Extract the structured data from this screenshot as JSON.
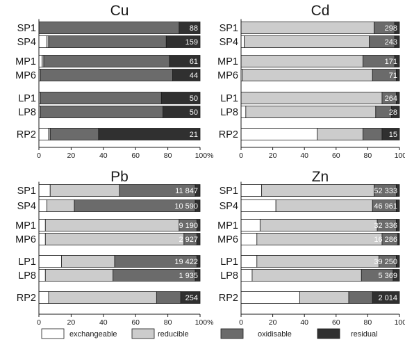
{
  "colors": {
    "exchangeable": "#ffffff",
    "reducible": "#cccccc",
    "oxidisable": "#6b6b6b",
    "residual": "#303030"
  },
  "legend": [
    "exchangeable",
    "reducible",
    "oxidisable",
    "residual"
  ],
  "chart_data": [
    {
      "type": "bar",
      "orientation": "horizontal",
      "stacked": true,
      "title": "Cu",
      "categories": [
        "SP1",
        "SP4",
        "MP1",
        "MP6",
        "LP1",
        "LP8",
        "RP2"
      ],
      "series": [
        {
          "name": "exchangeable",
          "values": [
            0,
            5,
            2,
            0,
            0,
            0,
            6
          ]
        },
        {
          "name": "reducible",
          "values": [
            0,
            1,
            1,
            1,
            1,
            1,
            1
          ]
        },
        {
          "name": "oxidisable",
          "values": [
            87,
            73,
            78,
            82,
            75,
            76,
            30
          ]
        },
        {
          "name": "residual",
          "values": [
            13,
            21,
            19,
            17,
            24,
            23,
            63
          ]
        }
      ],
      "labels": [
        "88",
        "159",
        "61",
        "44",
        "50",
        "50",
        "21"
      ],
      "xlim": [
        0,
        100
      ],
      "xticks": [
        "0",
        "20",
        "40",
        "60",
        "80",
        "100%"
      ]
    },
    {
      "type": "bar",
      "orientation": "horizontal",
      "stacked": true,
      "title": "Cd",
      "categories": [
        "SP1",
        "SP4",
        "MP1",
        "MP6",
        "LP1",
        "LP8",
        "RP2"
      ],
      "series": [
        {
          "name": "exchangeable",
          "values": [
            0,
            2,
            0,
            1,
            0,
            3,
            48
          ]
        },
        {
          "name": "reducible",
          "values": [
            84,
            79,
            77,
            82,
            89,
            82,
            29
          ]
        },
        {
          "name": "oxidisable",
          "values": [
            13,
            16,
            20,
            15,
            9,
            10,
            12
          ]
        },
        {
          "name": "residual",
          "values": [
            3,
            3,
            3,
            2,
            2,
            5,
            11
          ]
        }
      ],
      "labels": [
        "298",
        "243",
        "171",
        "71",
        "264",
        "28",
        "15"
      ],
      "xlim": [
        0,
        100
      ],
      "xticks": [
        "0",
        "20",
        "40",
        "60",
        "80",
        "100%"
      ]
    },
    {
      "type": "bar",
      "orientation": "horizontal",
      "stacked": true,
      "title": "Pb",
      "categories": [
        "SP1",
        "SP4",
        "MP1",
        "MP6",
        "LP1",
        "LP8",
        "RP2"
      ],
      "series": [
        {
          "name": "exchangeable",
          "values": [
            7,
            5,
            4,
            4,
            14,
            4,
            6
          ]
        },
        {
          "name": "reducible",
          "values": [
            43,
            17,
            83,
            86,
            33,
            42,
            67
          ]
        },
        {
          "name": "oxidisable",
          "values": [
            47,
            75,
            11,
            8,
            51,
            51,
            15
          ]
        },
        {
          "name": "residual",
          "values": [
            3,
            3,
            2,
            2,
            2,
            3,
            12
          ]
        }
      ],
      "labels": [
        "11 847",
        "10 590",
        "9 190",
        "2 927",
        "19 422",
        "1 935",
        "254"
      ],
      "xlim": [
        0,
        100
      ],
      "xticks": [
        "0",
        "20",
        "40",
        "60",
        "80",
        "100%"
      ]
    },
    {
      "type": "bar",
      "orientation": "horizontal",
      "stacked": true,
      "title": "Zn",
      "categories": [
        "SP1",
        "SP4",
        "MP1",
        "MP6",
        "LP1",
        "LP8",
        "RP2"
      ],
      "series": [
        {
          "name": "exchangeable",
          "values": [
            13,
            22,
            12,
            10,
            10,
            7,
            37
          ]
        },
        {
          "name": "reducible",
          "values": [
            71,
            61,
            74,
            79,
            77,
            69,
            31
          ]
        },
        {
          "name": "oxidisable",
          "values": [
            14,
            15,
            12,
            10,
            11,
            20,
            15
          ]
        },
        {
          "name": "residual",
          "values": [
            2,
            2,
            2,
            1,
            2,
            4,
            17
          ]
        }
      ],
      "labels": [
        "52 333",
        "46 961",
        "32 336",
        "16 286",
        "39 250",
        "5 369",
        "2 014"
      ],
      "xlim": [
        0,
        100
      ],
      "xticks": [
        "0",
        "20",
        "40",
        "60",
        "80",
        "100%"
      ]
    }
  ]
}
